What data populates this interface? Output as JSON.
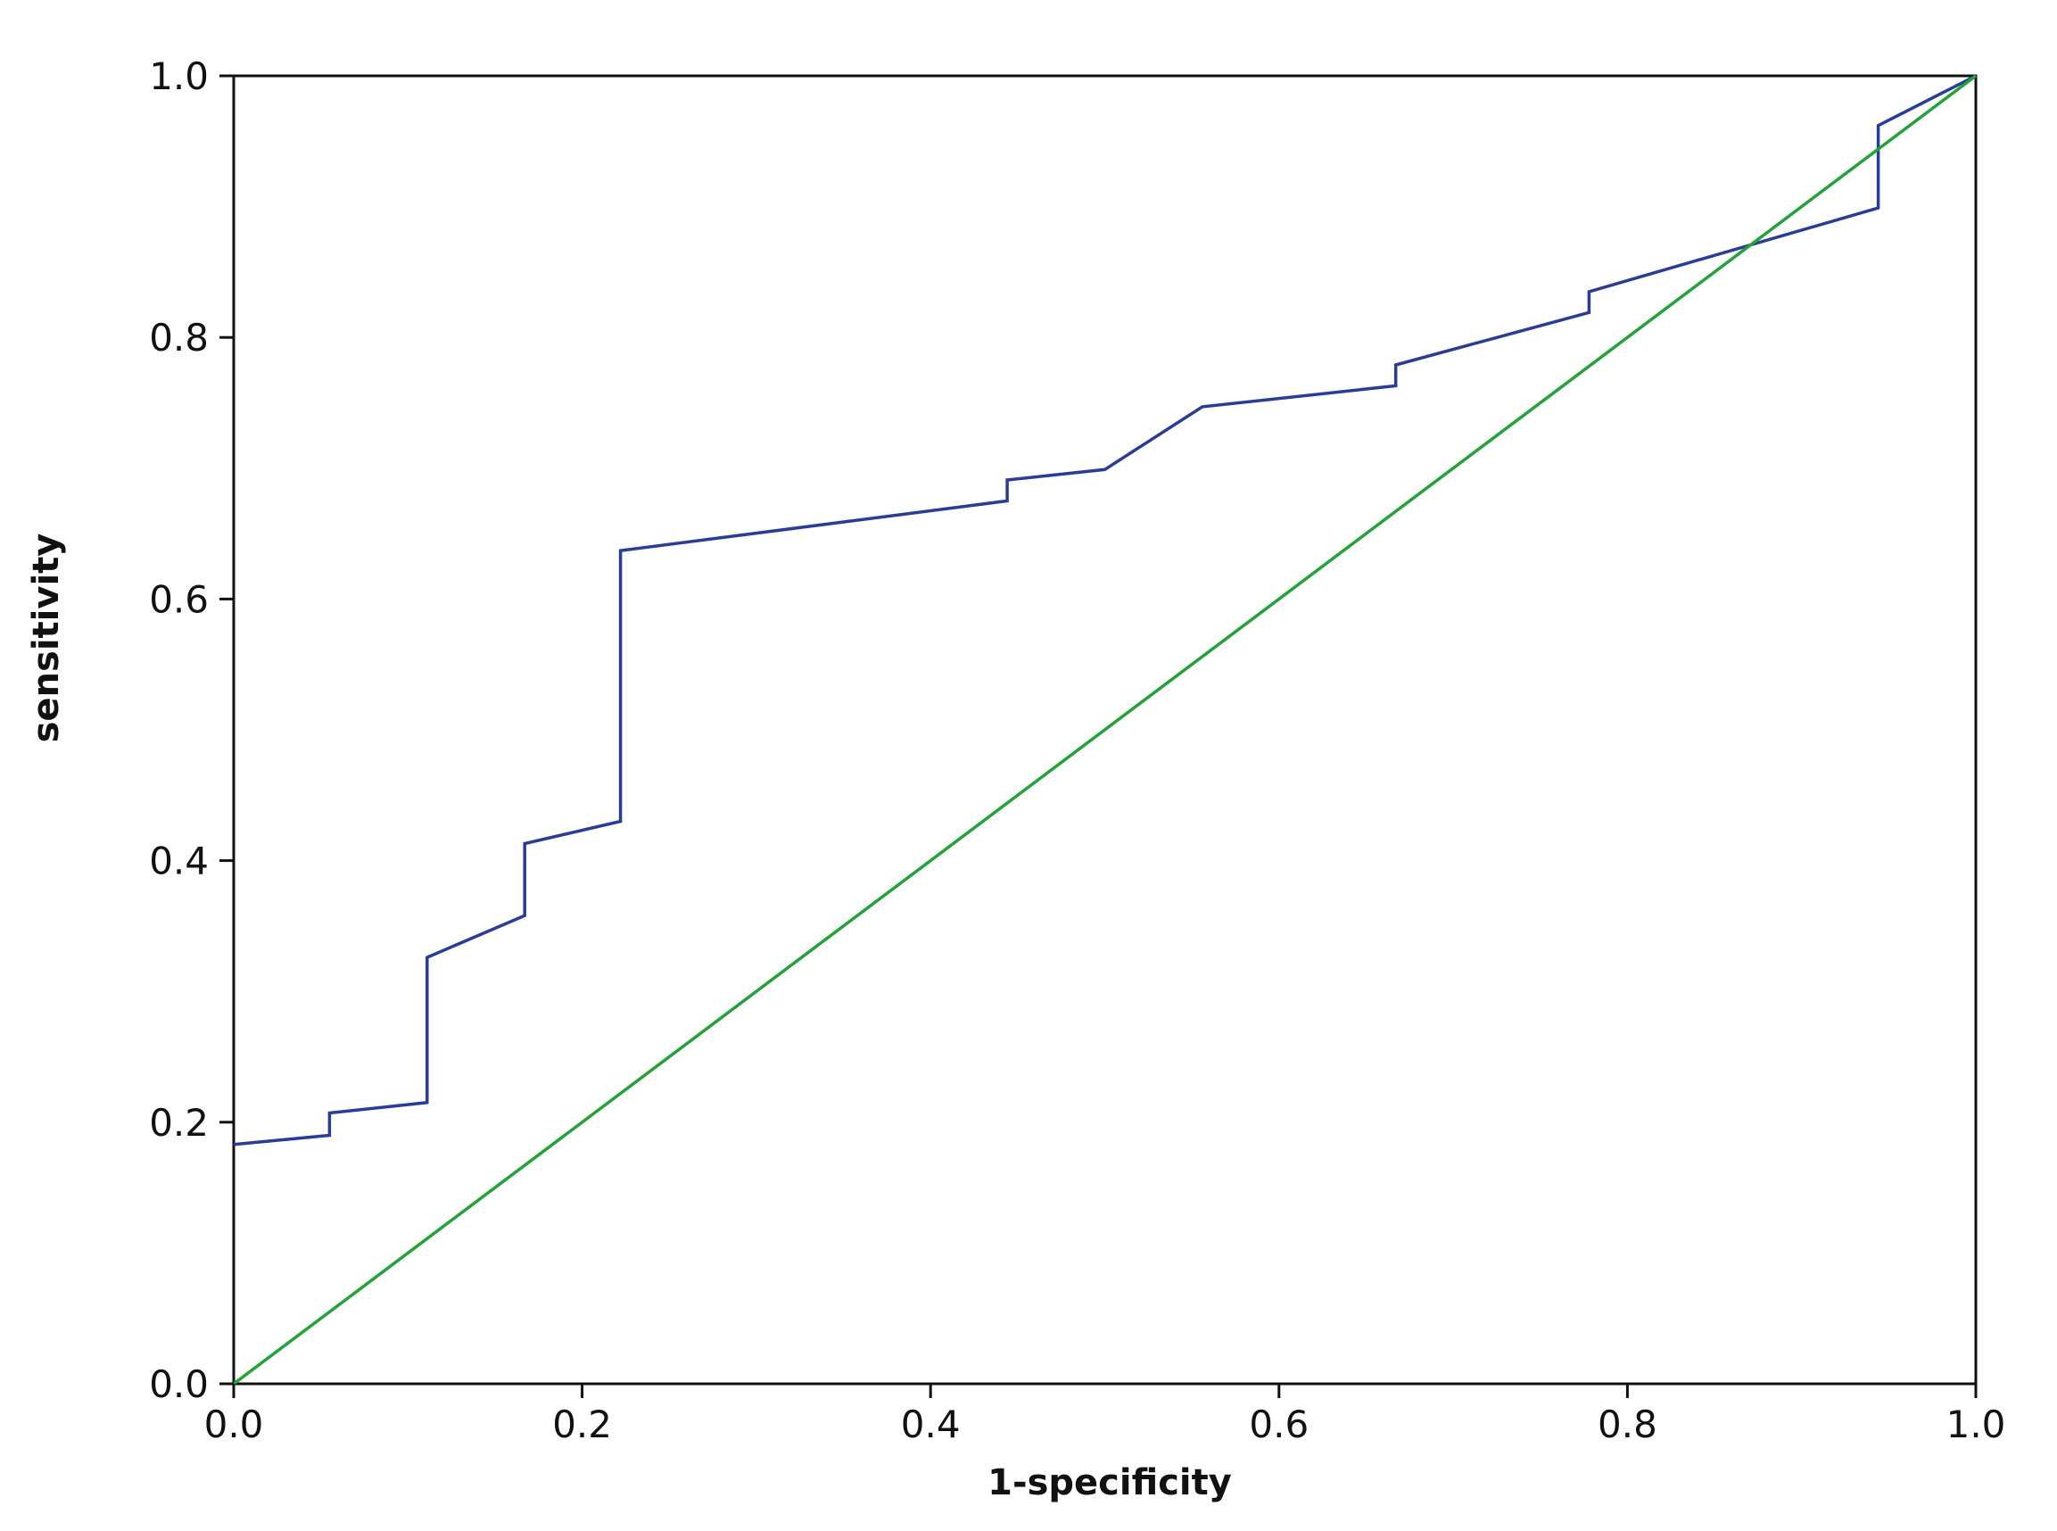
{
  "chart_data": {
    "type": "line",
    "title": "",
    "xlabel": "1-specificity",
    "ylabel": "sensitivity",
    "xlim": [
      0,
      1
    ],
    "ylim": [
      0,
      1
    ],
    "grid": false,
    "x_ticks": [
      "0.0",
      "0.2",
      "0.4",
      "0.6",
      "0.8",
      "1.0"
    ],
    "y_ticks": [
      "0.0",
      "0.2",
      "0.4",
      "0.6",
      "0.8",
      "1.0"
    ],
    "series": [
      {
        "color": "#2b3c97",
        "points": [
          [
            0.0,
            0.183
          ],
          [
            0.055,
            0.19
          ],
          [
            0.055,
            0.207
          ],
          [
            0.111,
            0.215
          ],
          [
            0.111,
            0.326
          ],
          [
            0.167,
            0.358
          ],
          [
            0.167,
            0.413
          ],
          [
            0.222,
            0.43
          ],
          [
            0.222,
            0.637
          ],
          [
            0.444,
            0.675
          ],
          [
            0.444,
            0.691
          ],
          [
            0.5,
            0.699
          ],
          [
            0.556,
            0.747
          ],
          [
            0.667,
            0.763
          ],
          [
            0.667,
            0.779
          ],
          [
            0.778,
            0.819
          ],
          [
            0.778,
            0.835
          ],
          [
            0.944,
            0.899
          ],
          [
            0.944,
            0.962
          ],
          [
            1.0,
            1.0
          ]
        ]
      },
      {
        "color": "#23a23a",
        "points": [
          [
            0.0,
            0.0
          ],
          [
            1.0,
            1.0
          ]
        ]
      }
    ]
  }
}
